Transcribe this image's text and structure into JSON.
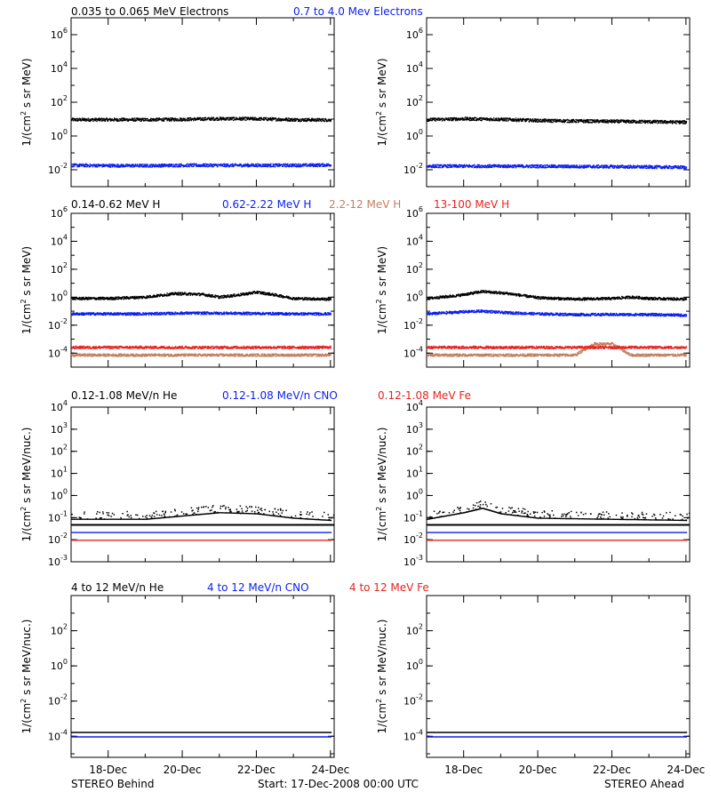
{
  "colors": {
    "black": "#000000",
    "blue": "#0a1ef0",
    "red": "#e8231e",
    "tan": "#c08060"
  },
  "footer": {
    "left": "STEREO Behind",
    "center": "Start: 17-Dec-2008 00:00 UTC",
    "right": "STEREO Ahead"
  },
  "rows": [
    {
      "labels": [
        {
          "text": "0.035 to 0.065 MeV Electrons",
          "color": "#000000"
        },
        {
          "text": "0.7 to 4.0 Mev Electrons",
          "color": "#0a1ef0"
        }
      ],
      "ylabel_bases": [
        "1/(cm",
        " s sr MeV)"
      ],
      "ylabel_sup": "2"
    },
    {
      "labels": [
        {
          "text": "0.14-0.62 MeV H",
          "color": "#000000"
        },
        {
          "text": "0.62-2.22 MeV H",
          "color": "#0a1ef0"
        },
        {
          "text": "2.2-12 MeV H",
          "color": "#c08060"
        },
        {
          "text": "13-100 MeV H",
          "color": "#e8231e"
        }
      ],
      "ylabel_bases": [
        "1/(cm",
        " s sr MeV)"
      ],
      "ylabel_sup": "2"
    },
    {
      "labels": [
        {
          "text": "0.12-1.08 MeV/n He",
          "color": "#000000"
        },
        {
          "text": "0.12-1.08 MeV/n CNO",
          "color": "#0a1ef0"
        },
        {
          "text": "0.12-1.08 MeV Fe",
          "color": "#e8231e"
        }
      ],
      "ylabel_bases": [
        "1/(cm",
        " s sr MeV/nuc.)"
      ],
      "ylabel_sup": "2"
    },
    {
      "labels": [
        {
          "text": "4 to 12 MeV/n He",
          "color": "#000000"
        },
        {
          "text": "4 to 12 MeV/n CNO",
          "color": "#0a1ef0"
        },
        {
          "text": "4 to 12 MeV Fe",
          "color": "#e8231e"
        }
      ],
      "ylabel_bases": [
        "1/(cm",
        " s sr MeV/nuc.)"
      ],
      "ylabel_sup": "2"
    }
  ],
  "chart_data": [
    {
      "type": "scatter",
      "panel": "electrons-behind",
      "x_ticks": [
        "18-Dec",
        "20-Dec",
        "22-Dec",
        "24-Dec"
      ],
      "x_range_days": [
        17,
        24.1
      ],
      "y_log_range": [
        -3,
        7
      ],
      "y_ticks": [
        "10^6",
        "10^4",
        "10^2",
        "10^0",
        "10^-2"
      ],
      "series": [
        {
          "name": "0.035 to 0.065 MeV Electrons",
          "color": "black",
          "x": [
            17,
            18,
            19,
            20,
            21,
            22,
            23,
            24
          ],
          "y_log": [
            1.0,
            1.0,
            1.0,
            1.02,
            1.06,
            1.05,
            1.0,
            0.98
          ]
        },
        {
          "name": "0.7 to 4.0 Mev Electrons",
          "color": "blue",
          "x": [
            17,
            18,
            19,
            20,
            21,
            22,
            23,
            24
          ],
          "y_log": [
            -1.7,
            -1.72,
            -1.72,
            -1.7,
            -1.7,
            -1.7,
            -1.7,
            -1.68
          ]
        }
      ]
    },
    {
      "type": "scatter",
      "panel": "electrons-ahead",
      "x_ticks": [
        "18-Dec",
        "20-Dec",
        "22-Dec",
        "24-Dec"
      ],
      "x_range_days": [
        17,
        24.1
      ],
      "y_log_range": [
        -3,
        7
      ],
      "y_ticks": [
        "10^6",
        "10^4",
        "10^2",
        "10^0",
        "10^-2"
      ],
      "series": [
        {
          "name": "0.035 to 0.065 MeV Electrons",
          "color": "black",
          "x": [
            17,
            18,
            19,
            20,
            21,
            22,
            23,
            24
          ],
          "y_log": [
            1.0,
            1.05,
            1.02,
            0.95,
            0.92,
            0.9,
            0.88,
            0.85
          ]
        },
        {
          "name": "0.7 to 4.0 Mev Electrons",
          "color": "blue",
          "x": [
            17,
            18,
            19,
            20,
            21,
            22,
            23,
            24
          ],
          "y_log": [
            -1.75,
            -1.75,
            -1.75,
            -1.76,
            -1.77,
            -1.78,
            -1.8,
            -1.82
          ]
        }
      ]
    },
    {
      "type": "scatter",
      "panel": "protons-behind",
      "x_ticks": [
        "18-Dec",
        "20-Dec",
        "22-Dec",
        "24-Dec"
      ],
      "x_range_days": [
        17,
        24.1
      ],
      "y_log_range": [
        -5,
        6
      ],
      "y_ticks": [
        "10^6",
        "10^4",
        "10^2",
        "10^0",
        "10^-2",
        "10^-4"
      ],
      "series": [
        {
          "name": "0.14-0.62 MeV H",
          "color": "black",
          "x": [
            17,
            18,
            19,
            19.8,
            20.5,
            21,
            21.5,
            22,
            22.5,
            23,
            24
          ],
          "y_log": [
            -0.05,
            -0.05,
            0.05,
            0.3,
            0.25,
            0.05,
            0.2,
            0.4,
            0.2,
            -0.05,
            -0.1
          ]
        },
        {
          "name": "0.62-2.22 MeV H",
          "color": "blue",
          "x": [
            17,
            18,
            19,
            20,
            21,
            22,
            23,
            24
          ],
          "y_log": [
            -1.15,
            -1.15,
            -1.15,
            -1.1,
            -1.1,
            -1.12,
            -1.15,
            -1.15
          ]
        },
        {
          "name": "2.2-12 MeV H",
          "color": "tan",
          "x": [
            17,
            24
          ],
          "y_log": [
            -4.1,
            -4.1
          ]
        },
        {
          "name": "13-100 MeV H",
          "color": "red",
          "x": [
            17,
            24
          ],
          "y_log": [
            -3.55,
            -3.55
          ]
        }
      ]
    },
    {
      "type": "scatter",
      "panel": "protons-ahead",
      "x_ticks": [
        "18-Dec",
        "20-Dec",
        "22-Dec",
        "24-Dec"
      ],
      "x_range_days": [
        17,
        24.1
      ],
      "y_log_range": [
        -5,
        6
      ],
      "y_ticks": [
        "10^6",
        "10^4",
        "10^2",
        "10^0",
        "10^-2",
        "10^-4"
      ],
      "series": [
        {
          "name": "0.14-0.62 MeV H",
          "color": "black",
          "x": [
            17,
            17.8,
            18.5,
            19.2,
            20,
            21,
            22,
            22.5,
            23,
            24
          ],
          "y_log": [
            -0.05,
            0.15,
            0.45,
            0.3,
            0.0,
            -0.1,
            -0.05,
            0.05,
            -0.05,
            -0.1
          ]
        },
        {
          "name": "0.62-2.22 MeV H",
          "color": "blue",
          "x": [
            17,
            18,
            18.5,
            19,
            20,
            21,
            22,
            23,
            24
          ],
          "y_log": [
            -1.15,
            -1.0,
            -0.95,
            -1.05,
            -1.15,
            -1.2,
            -1.2,
            -1.2,
            -1.25
          ]
        },
        {
          "name": "2.2-12 MeV H",
          "color": "tan",
          "x": [
            17,
            21,
            21.5,
            22,
            22.5,
            24
          ],
          "y_log": [
            -4.1,
            -4.1,
            -3.3,
            -3.3,
            -4.1,
            -4.1
          ]
        },
        {
          "name": "13-100 MeV H",
          "color": "red",
          "x": [
            17,
            24
          ],
          "y_log": [
            -3.55,
            -3.55
          ]
        }
      ]
    },
    {
      "type": "scatter",
      "panel": "heavy-low-behind",
      "x_ticks": [
        "18-Dec",
        "20-Dec",
        "22-Dec",
        "24-Dec"
      ],
      "x_range_days": [
        17,
        24.1
      ],
      "y_log_range": [
        -3,
        4
      ],
      "y_ticks": [
        "10^4",
        "10^3",
        "10^2",
        "10^1",
        "10^0",
        "10^-1",
        "10^-2",
        "10^-3"
      ],
      "series": [
        {
          "name": "0.12-1.08 MeV/n He",
          "color": "black",
          "x": [
            17,
            19,
            21,
            22,
            23,
            24
          ],
          "y_log": [
            -1.05,
            -1.05,
            -0.75,
            -0.8,
            -1.0,
            -1.1
          ]
        },
        {
          "name": "0.12-1.08 MeV/n CNO",
          "color": "blue",
          "x": [
            17,
            24
          ],
          "y_log": [
            -1.65,
            -1.65
          ]
        },
        {
          "name": "0.12-1.08 MeV Fe",
          "color": "red",
          "x": [
            17,
            24
          ],
          "y_log": [
            -2.0,
            -2.0
          ]
        }
      ]
    },
    {
      "type": "scatter",
      "panel": "heavy-low-ahead",
      "x_ticks": [
        "18-Dec",
        "20-Dec",
        "22-Dec",
        "24-Dec"
      ],
      "x_range_days": [
        17,
        24.1
      ],
      "y_log_range": [
        -3,
        4
      ],
      "y_ticks": [
        "10^4",
        "10^3",
        "10^2",
        "10^1",
        "10^0",
        "10^-1",
        "10^-2",
        "10^-3"
      ],
      "series": [
        {
          "name": "0.12-1.08 MeV/n He",
          "color": "black",
          "x": [
            17,
            18,
            18.5,
            19,
            20,
            24
          ],
          "y_log": [
            -1.05,
            -0.75,
            -0.55,
            -0.8,
            -1.0,
            -1.1
          ]
        },
        {
          "name": "0.12-1.08 MeV/n CNO",
          "color": "blue",
          "x": [
            17,
            24
          ],
          "y_log": [
            -1.65,
            -1.65
          ]
        },
        {
          "name": "0.12-1.08 MeV Fe",
          "color": "red",
          "x": [
            17,
            24
          ],
          "y_log": [
            -2.0,
            -2.0
          ]
        }
      ]
    },
    {
      "type": "scatter",
      "panel": "heavy-high-behind",
      "x_ticks": [
        "18-Dec",
        "20-Dec",
        "22-Dec",
        "24-Dec"
      ],
      "x_range_days": [
        17,
        24.1
      ],
      "y_log_range": [
        -5.2,
        4
      ],
      "y_ticks": [
        "10^2",
        "10^0",
        "10^-2",
        "10^-4"
      ],
      "series": [
        {
          "name": "4 to 12 MeV/n He",
          "color": "black",
          "x": [
            17,
            24
          ],
          "y_log": [
            -3.75,
            -3.75
          ]
        },
        {
          "name": "4 to 12 MeV/n CNO",
          "color": "blue",
          "x": [
            17,
            24
          ],
          "y_log": [
            -4.0,
            -4.0
          ]
        },
        {
          "name": "4 to 12 MeV Fe",
          "color": "red",
          "x": [],
          "y_log": []
        }
      ]
    },
    {
      "type": "scatter",
      "panel": "heavy-high-ahead",
      "x_ticks": [
        "18-Dec",
        "20-Dec",
        "22-Dec",
        "24-Dec"
      ],
      "x_range_days": [
        17,
        24.1
      ],
      "y_log_range": [
        -5.2,
        4
      ],
      "y_ticks": [
        "10^2",
        "10^0",
        "10^-2",
        "10^-4"
      ],
      "series": [
        {
          "name": "4 to 12 MeV/n He",
          "color": "black",
          "x": [
            17,
            24
          ],
          "y_log": [
            -3.75,
            -3.75
          ]
        },
        {
          "name": "4 to 12 MeV/n CNO",
          "color": "blue",
          "x": [
            17,
            24
          ],
          "y_log": [
            -4.0,
            -4.0
          ]
        },
        {
          "name": "4 to 12 MeV Fe",
          "color": "red",
          "x": [],
          "y_log": []
        }
      ]
    }
  ]
}
